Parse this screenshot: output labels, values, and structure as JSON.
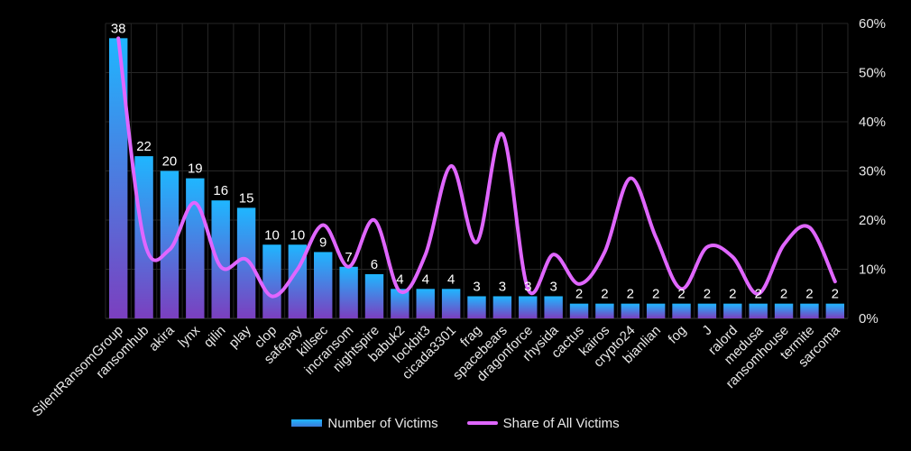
{
  "chart_data": {
    "type": "bar",
    "categories": [
      "SilentRansomGroup",
      "ransomhub",
      "akira",
      "lynx",
      "qilin",
      "play",
      "clop",
      "safepay",
      "killsec",
      "incransom",
      "nightspire",
      "babuk2",
      "lockbit3",
      "cicada3301",
      "frag",
      "spacebears",
      "dragonforce",
      "rhysida",
      "cactus",
      "kairos",
      "crypto24",
      "bianlian",
      "fog",
      "J",
      "ralord",
      "medusa",
      "ransomhouse",
      "termite",
      "sarcoma"
    ],
    "series": [
      {
        "name": "Number of Victims",
        "axis": "left",
        "type": "bar",
        "values": [
          38,
          22,
          20,
          19,
          16,
          15,
          10,
          10,
          9,
          7,
          6,
          4,
          4,
          4,
          3,
          3,
          3,
          3,
          2,
          2,
          2,
          2,
          2,
          2,
          2,
          2,
          2,
          2,
          2
        ],
        "color": "#1fb6ff"
      },
      {
        "name": "Share of All Victims",
        "axis": "right",
        "type": "line",
        "smooth": true,
        "values": [
          0.57,
          0.16,
          0.14,
          0.235,
          0.105,
          0.12,
          0.045,
          0.1,
          0.19,
          0.105,
          0.2,
          0.055,
          0.13,
          0.31,
          0.155,
          0.375,
          0.06,
          0.13,
          0.07,
          0.135,
          0.285,
          0.165,
          0.06,
          0.145,
          0.125,
          0.05,
          0.15,
          0.185,
          0.075
        ],
        "color": "#e066ff"
      }
    ],
    "y_left": {
      "min": 0,
      "max": 40,
      "labels_shown": false
    },
    "y_right": {
      "min": 0,
      "max": 0.6,
      "ticks": [
        "0%",
        "10%",
        "20%",
        "30%",
        "40%",
        "50%",
        "60%"
      ]
    },
    "grid": true,
    "legend": "bottom",
    "colors": {
      "background": "#000000",
      "bar_top": "#1fb6ff",
      "bar_bottom": "#7b3fbf",
      "line": "#e066ff",
      "grid": "#262626",
      "text": "#e8e8e8"
    }
  }
}
